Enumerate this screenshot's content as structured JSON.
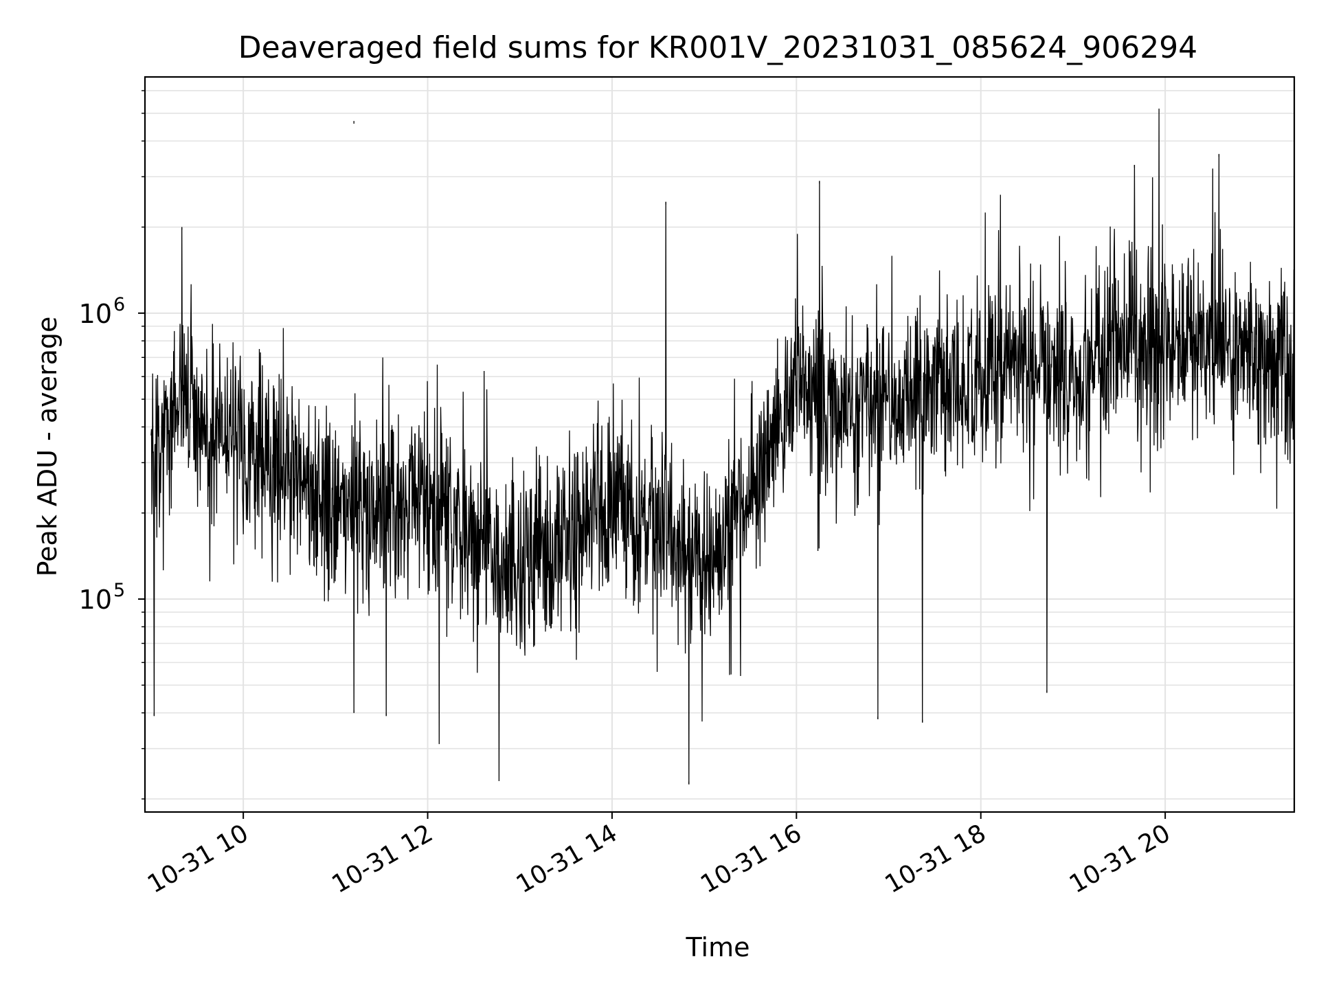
{
  "chart_data": {
    "type": "line",
    "title": "Deaveraged field sums for KR001V_20231031_085624_906294",
    "xlabel": "Time",
    "ylabel": "Peak ADU - average",
    "y_scale": "log",
    "grid": true,
    "legend": "none",
    "line_color": "#000000",
    "xlim": [
      "2023-10-31 08:56",
      "2023-10-31 21:24"
    ],
    "ylim": [
      18000,
      6700000
    ],
    "x_ticks": [
      {
        "value": "2023-10-31 10:00",
        "label": "10-31 10"
      },
      {
        "value": "2023-10-31 12:00",
        "label": "10-31 12"
      },
      {
        "value": "2023-10-31 14:00",
        "label": "10-31 14"
      },
      {
        "value": "2023-10-31 16:00",
        "label": "10-31 16"
      },
      {
        "value": "2023-10-31 18:00",
        "label": "10-31 18"
      },
      {
        "value": "2023-10-31 20:00",
        "label": "10-31 20"
      }
    ],
    "y_ticks": [
      {
        "value": 100000,
        "base": "10",
        "exp": "5"
      },
      {
        "value": 1000000,
        "base": "10",
        "exp": "6"
      }
    ],
    "series": [
      {
        "x": [
          "2023-10-31 09:00",
          "2023-10-31 09:20",
          "2023-10-31 09:40",
          "2023-10-31 10:00",
          "2023-10-31 10:30",
          "2023-10-31 11:00",
          "2023-10-31 11:30",
          "2023-10-31 12:00",
          "2023-10-31 12:30",
          "2023-10-31 13:00",
          "2023-10-31 13:30",
          "2023-10-31 14:00",
          "2023-10-31 14:30",
          "2023-10-31 15:00",
          "2023-10-31 15:30",
          "2023-10-31 16:00",
          "2023-10-31 16:30",
          "2023-10-31 17:00",
          "2023-10-31 17:30",
          "2023-10-31 18:00",
          "2023-10-31 18:30",
          "2023-10-31 19:00",
          "2023-10-31 19:30",
          "2023-10-31 20:00",
          "2023-10-31 20:30",
          "2023-10-31 21:00",
          "2023-10-31 21:24"
        ],
        "y": [
          300000,
          550000,
          380000,
          340000,
          270000,
          220000,
          210000,
          230000,
          170000,
          130000,
          170000,
          220000,
          180000,
          120000,
          250000,
          600000,
          500000,
          450000,
          550000,
          600000,
          650000,
          600000,
          750000,
          800000,
          800000,
          700000,
          650000
        ]
      }
    ],
    "peaks": [
      {
        "x": "2023-10-31 09:20",
        "y": 2000000
      },
      {
        "x": "2023-10-31 11:12",
        "y": 4700000
      },
      {
        "x": "2023-10-31 14:35",
        "y": 2450000
      },
      {
        "x": "2023-10-31 16:15",
        "y": 2900000
      },
      {
        "x": "2023-10-31 19:40",
        "y": 3300000
      },
      {
        "x": "2023-10-31 20:35",
        "y": 3600000
      }
    ],
    "troughs": [
      {
        "x": "2023-10-31 09:02",
        "y": 39000
      },
      {
        "x": "2023-10-31 11:12",
        "y": 40000
      },
      {
        "x": "2023-10-31 11:33",
        "y": 39000
      },
      {
        "x": "2023-10-31 14:50",
        "y": 22500
      },
      {
        "x": "2023-10-31 16:53",
        "y": 38000
      },
      {
        "x": "2023-10-31 17:22",
        "y": 37000
      },
      {
        "x": "2023-10-31 18:43",
        "y": 47000
      }
    ]
  }
}
